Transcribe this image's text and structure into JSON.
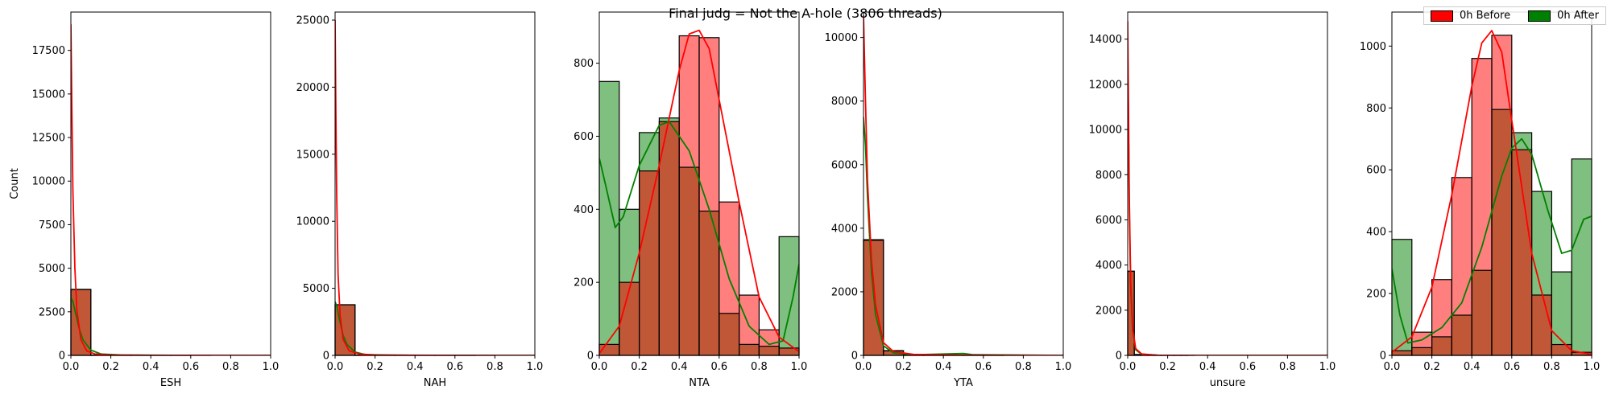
{
  "chart_data": {
    "title": "Final judg = Not the A-hole (3806 threads)",
    "legend": {
      "placement": "top-right",
      "entries": [
        {
          "name": "0h Before",
          "color": "#ff0000"
        },
        {
          "name": "0h After",
          "color": "#008000"
        }
      ]
    },
    "bin_edges": [
      0,
      0.1,
      0.2,
      0.3,
      0.4,
      0.5,
      0.6,
      0.7,
      0.8,
      0.9,
      1.0
    ],
    "colors": {
      "before": "#ff0000",
      "after": "#008000",
      "overlap": "#c05838"
    },
    "ylabel": "Count",
    "panels": [
      {
        "type": "bar",
        "xlabel": "ESH",
        "xlim": [
          0,
          1
        ],
        "ylim": [
          0,
          19700
        ],
        "xticks": [
          "0.0",
          "0.2",
          "0.4",
          "0.6",
          "0.8",
          "1.0"
        ],
        "yticks": [
          0,
          2500,
          5000,
          7500,
          10000,
          12500,
          15000,
          17500
        ],
        "series": [
          {
            "name": "0h Before",
            "values": [
              3780,
              15,
              5,
              2,
              2,
              1,
              1,
              0,
              0,
              0
            ]
          },
          {
            "name": "0h After",
            "values": [
              3790,
              10,
              3,
              1,
              1,
              1,
              0,
              0,
              0,
              0
            ]
          }
        ],
        "kde": {
          "before": [
            [
              0,
              19000
            ],
            [
              0.005,
              14000
            ],
            [
              0.01,
              9500
            ],
            [
              0.02,
              5000
            ],
            [
              0.03,
              2600
            ],
            [
              0.05,
              900
            ],
            [
              0.08,
              250
            ],
            [
              0.12,
              80
            ],
            [
              0.2,
              20
            ],
            [
              0.4,
              5
            ],
            [
              1.0,
              0
            ]
          ],
          "after": [
            [
              0,
              3300
            ],
            [
              0.01,
              3100
            ],
            [
              0.02,
              2600
            ],
            [
              0.04,
              1600
            ],
            [
              0.06,
              900
            ],
            [
              0.1,
              300
            ],
            [
              0.15,
              80
            ],
            [
              0.25,
              20
            ],
            [
              0.5,
              5
            ],
            [
              1.0,
              0
            ]
          ]
        }
      },
      {
        "type": "bar",
        "xlabel": "NAH",
        "xlim": [
          0,
          1
        ],
        "ylim": [
          0,
          25600
        ],
        "xticks": [
          "0.0",
          "0.2",
          "0.4",
          "0.6",
          "0.8",
          "1.0"
        ],
        "yticks": [
          0,
          5000,
          10000,
          15000,
          20000,
          25000
        ],
        "series": [
          {
            "name": "0h Before",
            "values": [
              3770,
              20,
              6,
              4,
              2,
              2,
              1,
              1,
              0,
              0
            ]
          },
          {
            "name": "0h After",
            "values": [
              3780,
              15,
              5,
              3,
              1,
              1,
              1,
              0,
              0,
              0
            ]
          }
        ],
        "kde": {
          "before": [
            [
              0,
              25000
            ],
            [
              0.004,
              18000
            ],
            [
              0.008,
              12000
            ],
            [
              0.015,
              6000
            ],
            [
              0.025,
              3000
            ],
            [
              0.04,
              1200
            ],
            [
              0.07,
              350
            ],
            [
              0.12,
              100
            ],
            [
              0.2,
              30
            ],
            [
              0.5,
              5
            ],
            [
              1.0,
              0
            ]
          ],
          "after": [
            [
              0,
              4000
            ],
            [
              0.01,
              3600
            ],
            [
              0.02,
              2800
            ],
            [
              0.04,
              1500
            ],
            [
              0.06,
              800
            ],
            [
              0.1,
              250
            ],
            [
              0.15,
              60
            ],
            [
              0.3,
              10
            ],
            [
              1.0,
              0
            ]
          ]
        }
      },
      {
        "type": "bar",
        "xlabel": "NTA",
        "xlim": [
          0,
          1
        ],
        "ylim": [
          0,
          940
        ],
        "xticks": [
          "0.0",
          "0.2",
          "0.4",
          "0.6",
          "0.8",
          "1.0"
        ],
        "yticks": [
          0,
          200,
          400,
          600,
          800
        ],
        "series": [
          {
            "name": "0h Before",
            "values": [
              30,
              200,
              505,
              640,
              875,
              870,
              420,
              165,
              70,
              20
            ]
          },
          {
            "name": "0h After",
            "values": [
              750,
              400,
              610,
              650,
              515,
              395,
              115,
              30,
              25,
              325
            ]
          }
        ],
        "kde": {
          "before": [
            [
              0,
              5
            ],
            [
              0.1,
              80
            ],
            [
              0.2,
              280
            ],
            [
              0.3,
              520
            ],
            [
              0.4,
              780
            ],
            [
              0.45,
              880
            ],
            [
              0.5,
              890
            ],
            [
              0.55,
              840
            ],
            [
              0.6,
              700
            ],
            [
              0.7,
              420
            ],
            [
              0.8,
              160
            ],
            [
              0.9,
              50
            ],
            [
              1.0,
              10
            ]
          ],
          "after": [
            [
              0,
              540
            ],
            [
              0.03,
              470
            ],
            [
              0.08,
              350
            ],
            [
              0.12,
              380
            ],
            [
              0.2,
              520
            ],
            [
              0.3,
              630
            ],
            [
              0.35,
              640
            ],
            [
              0.45,
              560
            ],
            [
              0.55,
              400
            ],
            [
              0.65,
              210
            ],
            [
              0.75,
              80
            ],
            [
              0.85,
              30
            ],
            [
              0.92,
              40
            ],
            [
              0.97,
              160
            ],
            [
              1.0,
              250
            ]
          ]
        }
      },
      {
        "type": "bar",
        "xlabel": "YTA",
        "xlim": [
          0,
          1
        ],
        "ylim": [
          0,
          10800
        ],
        "xticks": [
          "0.0",
          "0.2",
          "0.4",
          "0.6",
          "0.8",
          "1.0"
        ],
        "yticks": [
          0,
          2000,
          4000,
          6000,
          8000,
          10000
        ],
        "series": [
          {
            "name": "0h Before",
            "values": [
              3620,
              150,
              20,
              6,
              5,
              3,
              1,
              1,
              0,
              0
            ]
          },
          {
            "name": "0h After",
            "values": [
              3640,
              140,
              15,
              5,
              4,
              2,
              1,
              0,
              0,
              0
            ]
          }
        ],
        "kde": {
          "before": [
            [
              0,
              10700
            ],
            [
              0.01,
              8000
            ],
            [
              0.02,
              5500
            ],
            [
              0.04,
              3000
            ],
            [
              0.06,
              1600
            ],
            [
              0.1,
              400
            ],
            [
              0.15,
              120
            ],
            [
              0.25,
              30
            ],
            [
              0.5,
              10
            ],
            [
              1.0,
              0
            ]
          ],
          "after": [
            [
              0,
              7500
            ],
            [
              0.01,
              6600
            ],
            [
              0.02,
              5000
            ],
            [
              0.04,
              2600
            ],
            [
              0.06,
              1300
            ],
            [
              0.1,
              300
            ],
            [
              0.15,
              80
            ],
            [
              0.25,
              20
            ],
            [
              0.5,
              60
            ],
            [
              0.55,
              20
            ],
            [
              1.0,
              0
            ]
          ]
        }
      },
      {
        "type": "bar",
        "xlabel": "unsure",
        "xlim": [
          0,
          1
        ],
        "ylim": [
          0,
          15200
        ],
        "xticks": [
          "0.0",
          "0.2",
          "0.4",
          "0.6",
          "0.8",
          "1.0"
        ],
        "yticks": [
          0,
          2000,
          4000,
          6000,
          8000,
          10000,
          12000,
          14000
        ],
        "bin_edges": [
          0,
          0.033,
          0.067,
          0.1,
          0.133,
          0.167,
          0.2,
          0.233,
          0.267,
          0.3,
          0.333
        ],
        "series": [
          {
            "name": "0h Before",
            "values": [
              3720,
              40,
              20,
              10,
              6,
              4,
              3,
              2,
              1,
              1
            ]
          },
          {
            "name": "0h After",
            "values": [
              3730,
              35,
              18,
              10,
              5,
              3,
              2,
              2,
              1,
              0
            ]
          }
        ],
        "kde": {
          "before": [
            [
              0,
              14800
            ],
            [
              0.004,
              11000
            ],
            [
              0.008,
              7000
            ],
            [
              0.015,
              3200
            ],
            [
              0.025,
              1200
            ],
            [
              0.04,
              300
            ],
            [
              0.07,
              60
            ],
            [
              0.15,
              10
            ],
            [
              0.35,
              0
            ],
            [
              1.0,
              0
            ]
          ],
          "after": [
            [
              0,
              13500
            ],
            [
              0.004,
              10000
            ],
            [
              0.008,
              6400
            ],
            [
              0.015,
              3000
            ],
            [
              0.025,
              1100
            ],
            [
              0.04,
              250
            ],
            [
              0.07,
              50
            ],
            [
              0.15,
              8
            ],
            [
              0.35,
              0
            ],
            [
              1.0,
              0
            ]
          ]
        }
      },
      {
        "type": "bar",
        "xlabel": "",
        "xlim": [
          0,
          1
        ],
        "ylim": [
          0,
          1110
        ],
        "xticks": [
          "0.0",
          "0.2",
          "0.4",
          "0.6",
          "0.8",
          "1.0"
        ],
        "yticks": [
          0,
          200,
          400,
          600,
          800,
          1000
        ],
        "series": [
          {
            "name": "0h Before",
            "values": [
              15,
              75,
              245,
              575,
              960,
              1035,
              665,
              195,
              35,
              10
            ]
          },
          {
            "name": "0h After",
            "values": [
              375,
              25,
              60,
              130,
              275,
              795,
              720,
              530,
              270,
              635
            ]
          }
        ],
        "kde": {
          "before": [
            [
              0,
              10
            ],
            [
              0.1,
              60
            ],
            [
              0.2,
              220
            ],
            [
              0.3,
              520
            ],
            [
              0.4,
              870
            ],
            [
              0.45,
              1010
            ],
            [
              0.5,
              1050
            ],
            [
              0.55,
              980
            ],
            [
              0.6,
              760
            ],
            [
              0.7,
              330
            ],
            [
              0.8,
              80
            ],
            [
              0.9,
              15
            ],
            [
              1.0,
              3
            ]
          ],
          "after": [
            [
              0,
              280
            ],
            [
              0.04,
              130
            ],
            [
              0.08,
              40
            ],
            [
              0.15,
              50
            ],
            [
              0.25,
              90
            ],
            [
              0.35,
              170
            ],
            [
              0.45,
              350
            ],
            [
              0.55,
              580
            ],
            [
              0.6,
              670
            ],
            [
              0.65,
              700
            ],
            [
              0.7,
              650
            ],
            [
              0.78,
              470
            ],
            [
              0.85,
              330
            ],
            [
              0.9,
              340
            ],
            [
              0.96,
              440
            ],
            [
              1.0,
              450
            ]
          ]
        }
      }
    ]
  }
}
